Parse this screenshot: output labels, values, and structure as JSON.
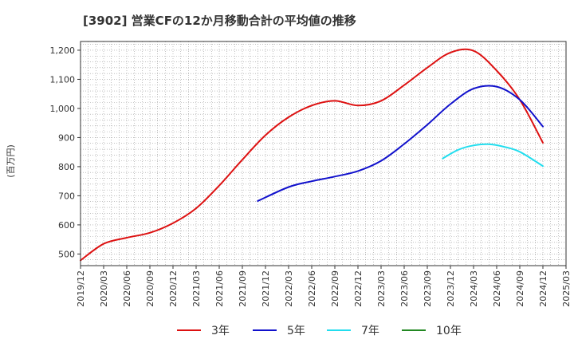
{
  "chart_data": {
    "type": "line",
    "title": "[3902]  営業CFの12か月移動合計の平均値の推移",
    "ylabel": "(百万円)",
    "xlabel": "",
    "ylim": [
      460,
      1230
    ],
    "yticks": [
      500,
      600,
      700,
      800,
      900,
      1000,
      1100,
      1200
    ],
    "ytick_labels": [
      "500",
      "600",
      "700",
      "800",
      "900",
      "1,000",
      "1,100",
      "1,200"
    ],
    "xlim": [
      "2019-12",
      "2025-03"
    ],
    "xticks": [
      "2019/12",
      "2020/03",
      "2020/06",
      "2020/09",
      "2020/12",
      "2021/03",
      "2021/06",
      "2021/09",
      "2021/12",
      "2022/03",
      "2022/06",
      "2022/09",
      "2022/12",
      "2023/03",
      "2023/06",
      "2023/09",
      "2023/12",
      "2024/03",
      "2024/06",
      "2024/09",
      "2024/12",
      "2025/03"
    ],
    "grid": true,
    "legend_position": "bottom",
    "series": [
      {
        "name": "3年",
        "color": "#dd1111",
        "points": [
          [
            "2019-12",
            478
          ],
          [
            "2020-03",
            535
          ],
          [
            "2020-06",
            556
          ],
          [
            "2020-09",
            573
          ],
          [
            "2020-12",
            606
          ],
          [
            "2021-03",
            657
          ],
          [
            "2021-06",
            735
          ],
          [
            "2021-09",
            824
          ],
          [
            "2021-12",
            908
          ],
          [
            "2022-03",
            970
          ],
          [
            "2022-06",
            1010
          ],
          [
            "2022-09",
            1026
          ],
          [
            "2022-12",
            1010
          ],
          [
            "2023-03",
            1026
          ],
          [
            "2023-06",
            1080
          ],
          [
            "2023-09",
            1140
          ],
          [
            "2023-12",
            1192
          ],
          [
            "2024-03",
            1198
          ],
          [
            "2024-06",
            1130
          ],
          [
            "2024-09",
            1030
          ],
          [
            "2024-12",
            882
          ]
        ]
      },
      {
        "name": "5年",
        "color": "#1111cc",
        "points": [
          [
            "2021-11",
            682
          ],
          [
            "2022-03",
            730
          ],
          [
            "2022-06",
            750
          ],
          [
            "2022-09",
            766
          ],
          [
            "2022-12",
            785
          ],
          [
            "2023-03",
            820
          ],
          [
            "2023-06",
            878
          ],
          [
            "2023-09",
            944
          ],
          [
            "2023-12",
            1015
          ],
          [
            "2024-03",
            1068
          ],
          [
            "2024-06",
            1075
          ],
          [
            "2024-09",
            1030
          ],
          [
            "2024-12",
            938
          ]
        ]
      },
      {
        "name": "7年",
        "color": "#22ddee",
        "points": [
          [
            "2023-11",
            828
          ],
          [
            "2024-01",
            858
          ],
          [
            "2024-03",
            873
          ],
          [
            "2024-05",
            877
          ],
          [
            "2024-07",
            868
          ],
          [
            "2024-09",
            851
          ],
          [
            "2024-12",
            802
          ]
        ]
      },
      {
        "name": "10年",
        "color": "#228822",
        "points": []
      }
    ]
  }
}
